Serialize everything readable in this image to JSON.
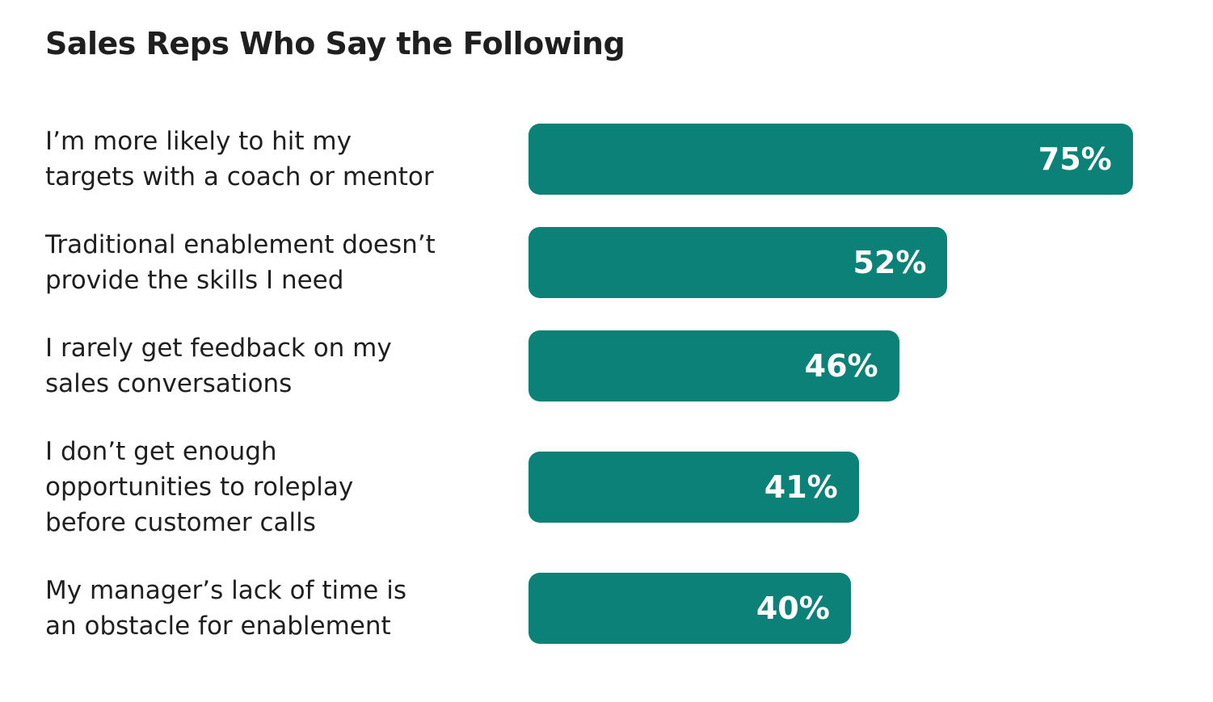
{
  "chart_data": {
    "type": "bar",
    "orientation": "horizontal",
    "title": "Sales Reps Who Say the Following",
    "categories": [
      "I’m more likely to hit my\ntargets with a coach or mentor",
      "Traditional enablement doesn’t\nprovide the skills I need",
      "I rarely get feedback on my\nsales conversations",
      "I don’t get enough\nopportunities to roleplay\nbefore customer calls",
      "My manager’s lack of time is\nan obstacle for enablement"
    ],
    "values": [
      75,
      52,
      46,
      41,
      40
    ],
    "value_labels": [
      "75%",
      "52%",
      "46%",
      "41%",
      "40%"
    ],
    "color": "#0b8178"
  }
}
